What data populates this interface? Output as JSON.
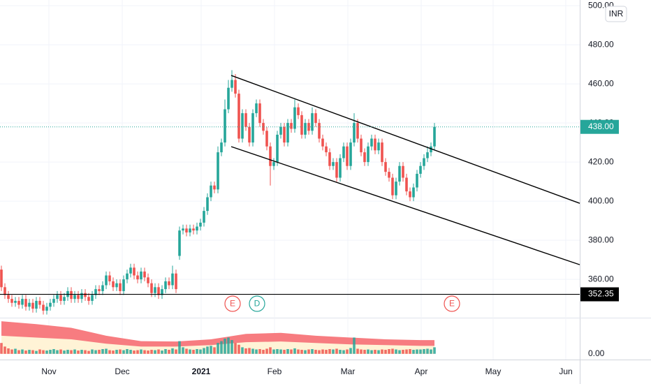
{
  "chart_data": {
    "type": "candlestick",
    "currency": "INR",
    "up_color": "#26a69a",
    "down_color": "#ef5350",
    "xlim": [
      -0.4,
      165.6
    ],
    "xticks": [
      {
        "value": 13.6,
        "label": "Nov"
      },
      {
        "value": 34.6,
        "label": "Dec"
      },
      {
        "value": 57.2,
        "label": "2021"
      },
      {
        "value": 78.2,
        "label": "Feb"
      },
      {
        "value": 99.2,
        "label": "Mar"
      },
      {
        "value": 120.2,
        "label": "Apr"
      },
      {
        "value": 140.8,
        "label": "May"
      },
      {
        "value": 161.6,
        "label": "Jun"
      }
    ],
    "ylim": [
      340.4,
      502.9
    ],
    "yticks": [
      {
        "value": 360,
        "label": "360.00"
      },
      {
        "value": 380,
        "label": "380.00"
      },
      {
        "value": 400,
        "label": "400.00"
      },
      {
        "value": 420,
        "label": "420.00"
      },
      {
        "value": 440,
        "label": "440.00"
      },
      {
        "value": 460,
        "label": "460.00"
      },
      {
        "value": 480,
        "label": "480.00"
      },
      {
        "value": 500,
        "label": "500.00"
      }
    ],
    "open": [
      365,
      356,
      352,
      350,
      348,
      349,
      347,
      350,
      346,
      348,
      345,
      349,
      347,
      344,
      346,
      348,
      350,
      352,
      349,
      351,
      354,
      350,
      352,
      350,
      353,
      351,
      349,
      352,
      355,
      354,
      357,
      362,
      359,
      356,
      358,
      354,
      360,
      363,
      366,
      362,
      360,
      364,
      361,
      358,
      353,
      356,
      352,
      355,
      359,
      357,
      363,
      372,
      385,
      386,
      384,
      386,
      385,
      387,
      389,
      395,
      402,
      408,
      406,
      425,
      430,
      447,
      458,
      462,
      455,
      432,
      445,
      438,
      430,
      445,
      450,
      440,
      436,
      428,
      418,
      420,
      434,
      438,
      430,
      440,
      437,
      448,
      444,
      434,
      440,
      436,
      445,
      440,
      432,
      428,
      425,
      418,
      420,
      412,
      422,
      428,
      418,
      430,
      440,
      432,
      425,
      420,
      428,
      432,
      426,
      430,
      420,
      415,
      412,
      403,
      410,
      418,
      412,
      405,
      402,
      407,
      414,
      418,
      422,
      425,
      428
    ],
    "high": [
      367,
      358,
      354,
      352,
      351,
      351,
      352,
      352,
      350,
      350,
      351,
      351,
      349,
      348,
      350,
      352,
      354,
      354,
      353,
      356,
      356,
      354,
      354,
      355,
      355,
      353,
      354,
      357,
      357,
      359,
      364,
      364,
      361,
      360,
      360,
      362,
      365,
      368,
      368,
      364,
      366,
      366,
      363,
      360,
      358,
      358,
      357,
      361,
      361,
      367,
      365,
      387,
      388,
      388,
      388,
      388,
      389,
      391,
      397,
      404,
      410,
      410,
      428,
      432,
      452,
      462,
      467,
      465,
      457,
      447,
      447,
      440,
      447,
      452,
      452,
      442,
      438,
      430,
      422,
      436,
      440,
      440,
      442,
      442,
      452,
      450,
      446,
      442,
      442,
      448,
      447,
      442,
      434,
      430,
      427,
      422,
      422,
      424,
      430,
      430,
      432,
      445,
      442,
      434,
      427,
      430,
      434,
      434,
      432,
      432,
      422,
      417,
      414,
      412,
      420,
      420,
      414,
      407,
      409,
      416,
      420,
      424,
      428,
      430,
      440
    ],
    "low": [
      354,
      350,
      348,
      346,
      346,
      345,
      345,
      344,
      344,
      343,
      343,
      345,
      342,
      342,
      344,
      346,
      348,
      347,
      347,
      349,
      348,
      348,
      348,
      348,
      349,
      347,
      347,
      350,
      352,
      352,
      355,
      357,
      354,
      354,
      352,
      352,
      358,
      361,
      360,
      358,
      358,
      359,
      356,
      351,
      351,
      350,
      350,
      353,
      355,
      355,
      353,
      370,
      383,
      382,
      382,
      383,
      383,
      385,
      387,
      393,
      400,
      404,
      404,
      423,
      428,
      445,
      456,
      453,
      430,
      430,
      436,
      428,
      428,
      443,
      438,
      434,
      426,
      408,
      416,
      418,
      432,
      428,
      428,
      435,
      435,
      442,
      432,
      432,
      434,
      434,
      438,
      430,
      426,
      423,
      416,
      416,
      410,
      410,
      420,
      416,
      416,
      428,
      430,
      423,
      418,
      418,
      426,
      424,
      424,
      418,
      413,
      410,
      401,
      401,
      408,
      410,
      403,
      400,
      400,
      405,
      412,
      416,
      420,
      423,
      426
    ],
    "close": [
      356,
      352,
      350,
      348,
      349,
      347,
      350,
      346,
      348,
      345,
      349,
      347,
      344,
      346,
      348,
      350,
      352,
      349,
      351,
      354,
      350,
      352,
      350,
      353,
      351,
      349,
      352,
      355,
      354,
      357,
      362,
      359,
      356,
      358,
      354,
      360,
      363,
      366,
      362,
      360,
      364,
      361,
      358,
      353,
      356,
      352,
      355,
      359,
      357,
      363,
      355,
      385,
      386,
      384,
      386,
      385,
      387,
      389,
      395,
      402,
      408,
      406,
      425,
      430,
      447,
      458,
      462,
      455,
      432,
      445,
      438,
      430,
      445,
      450,
      440,
      436,
      428,
      418,
      420,
      434,
      438,
      430,
      440,
      437,
      448,
      444,
      434,
      440,
      436,
      445,
      440,
      432,
      428,
      425,
      418,
      420,
      412,
      422,
      428,
      418,
      430,
      440,
      432,
      425,
      420,
      428,
      432,
      426,
      430,
      420,
      415,
      412,
      403,
      410,
      418,
      412,
      405,
      402,
      407,
      414,
      418,
      422,
      425,
      428,
      438
    ],
    "volume": [
      30,
      20,
      15,
      12,
      14,
      10,
      12,
      9,
      11,
      10,
      8,
      12,
      10,
      9,
      11,
      13,
      10,
      12,
      9,
      11,
      10,
      12,
      9,
      11,
      10,
      8,
      12,
      10,
      11,
      13,
      14,
      10,
      9,
      11,
      12,
      10,
      13,
      11,
      9,
      10,
      12,
      10,
      9,
      11,
      10,
      12,
      9,
      13,
      11,
      15,
      12,
      35,
      18,
      14,
      12,
      11,
      13,
      12,
      16,
      20,
      22,
      18,
      30,
      35,
      42,
      45,
      38,
      30,
      25,
      18,
      15,
      16,
      14,
      12,
      13,
      11,
      14,
      18,
      12,
      13,
      12,
      11,
      13,
      12,
      15,
      12,
      11,
      10,
      12,
      13,
      11,
      10,
      12,
      11,
      13,
      12,
      14,
      11,
      10,
      12,
      16,
      45,
      14,
      12,
      11,
      12,
      10,
      11,
      10,
      12,
      11,
      13,
      14,
      12,
      10,
      11,
      12,
      13,
      11,
      12,
      12,
      13,
      14,
      12,
      18
    ],
    "volume_ylim": [
      -16,
      100
    ],
    "volume_yticks": [
      {
        "value": 0,
        "label": "0.00"
      }
    ],
    "volume_ma": {
      "x": [
        0,
        10,
        20,
        30,
        40,
        50,
        60,
        70,
        80,
        90,
        100,
        110,
        120,
        124
      ],
      "upper": [
        90,
        82,
        72,
        50,
        35,
        34,
        40,
        55,
        58,
        50,
        45,
        40,
        38,
        38
      ],
      "lower": [
        50,
        45,
        40,
        28,
        20,
        20,
        24,
        32,
        34,
        30,
        26,
        24,
        22,
        22
      ]
    },
    "last_price": {
      "value": 438,
      "label": "438.00"
    },
    "horizontal_line": 352.35,
    "trendlines": [
      {
        "x": [
          65.8,
          165.6
        ],
        "values": [
          464.3,
          398.9
        ]
      },
      {
        "x": [
          65.8,
          165.6
        ],
        "values": [
          427.9,
          367.5
        ]
      }
    ],
    "events": [
      {
        "x": 66.2,
        "label": "E",
        "color": "#ef5350"
      },
      {
        "x": 73.2,
        "label": "D",
        "color": "#26a69a"
      },
      {
        "x": 129,
        "label": "E",
        "color": "#ef5350"
      }
    ]
  }
}
